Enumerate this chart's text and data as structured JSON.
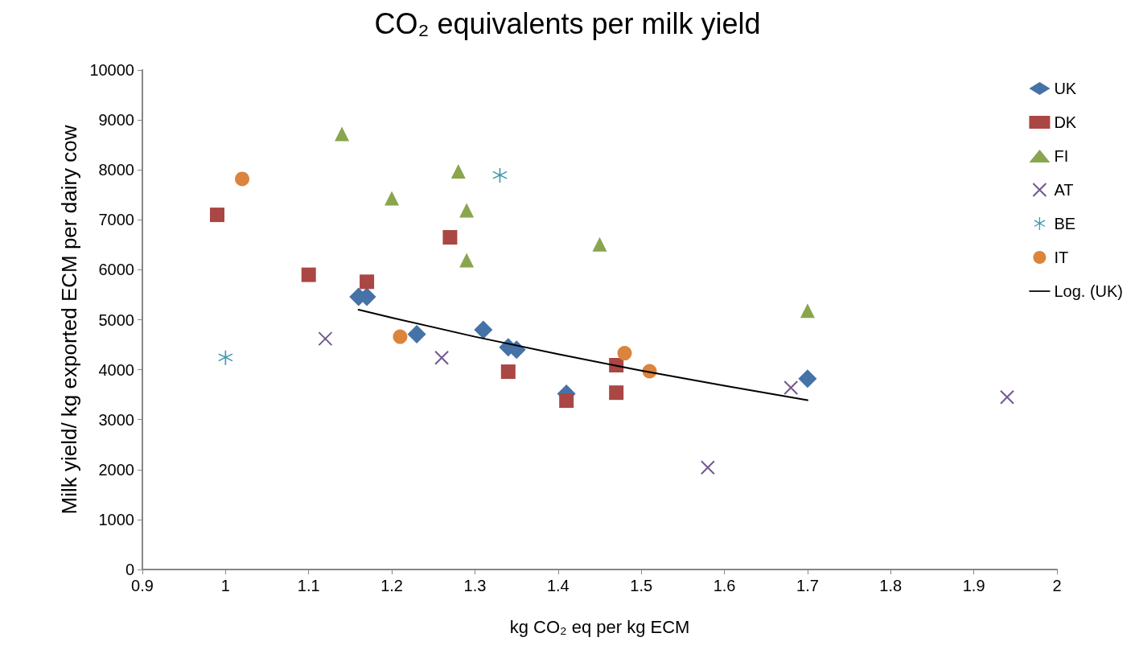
{
  "chart_data": {
    "type": "scatter",
    "title": "CO₂ equivalents per milk yield",
    "xlabel": "kg CO₂ eq per kg ECM",
    "ylabel": "Milk yield/ kg exported ECM per dairy cow",
    "xlim": [
      0.9,
      2
    ],
    "xticks": [
      0.9,
      1,
      1.1,
      1.2,
      1.3,
      1.4,
      1.5,
      1.6,
      1.7,
      1.8,
      1.9,
      2
    ],
    "ylim": [
      0,
      10000
    ],
    "yticks": [
      0,
      1000,
      2000,
      3000,
      4000,
      5000,
      6000,
      7000,
      8000,
      9000,
      10000
    ],
    "grid": false,
    "legend": "right",
    "series": [
      {
        "name": "UK",
        "color": "#4572a7",
        "marker": "diamond",
        "x": [
          1.16,
          1.17,
          1.23,
          1.31,
          1.34,
          1.35,
          1.41,
          1.7
        ],
        "values": [
          5460,
          5460,
          4710,
          4800,
          4450,
          4400,
          3520,
          3820
        ]
      },
      {
        "name": "DK",
        "color": "#aa4643",
        "marker": "square",
        "x": [
          0.99,
          1.1,
          1.17,
          1.27,
          1.34,
          1.41,
          1.47,
          1.47
        ],
        "values": [
          7100,
          5900,
          5760,
          6650,
          3960,
          3380,
          4090,
          3540
        ]
      },
      {
        "name": "FI",
        "color": "#89a54e",
        "marker": "triangle",
        "x": [
          1.14,
          1.2,
          1.28,
          1.29,
          1.29,
          1.45,
          1.7
        ],
        "values": [
          8720,
          7430,
          7970,
          7190,
          6190,
          6510,
          5180
        ]
      },
      {
        "name": "AT",
        "color": "#71588f",
        "marker": "cross",
        "x": [
          1.12,
          1.26,
          1.58,
          1.68,
          1.94
        ],
        "values": [
          4620,
          4240,
          2040,
          3640,
          3450
        ]
      },
      {
        "name": "BE",
        "color": "#4198af",
        "marker": "star",
        "x": [
          1.0,
          1.33
        ],
        "values": [
          4240,
          7890
        ]
      },
      {
        "name": "IT",
        "color": "#db843d",
        "marker": "circle",
        "x": [
          1.02,
          1.21,
          1.48,
          1.51
        ],
        "values": [
          7820,
          4660,
          4330,
          3970
        ]
      },
      {
        "name": "Log. (UK)",
        "type": "line",
        "color": "#000000",
        "marker": "none",
        "line_style": "solid",
        "x": [
          1.16,
          1.2,
          1.3,
          1.4,
          1.5,
          1.6,
          1.7
        ],
        "values": [
          5200,
          5040,
          4660,
          4310,
          3980,
          3680,
          3390
        ]
      }
    ]
  }
}
